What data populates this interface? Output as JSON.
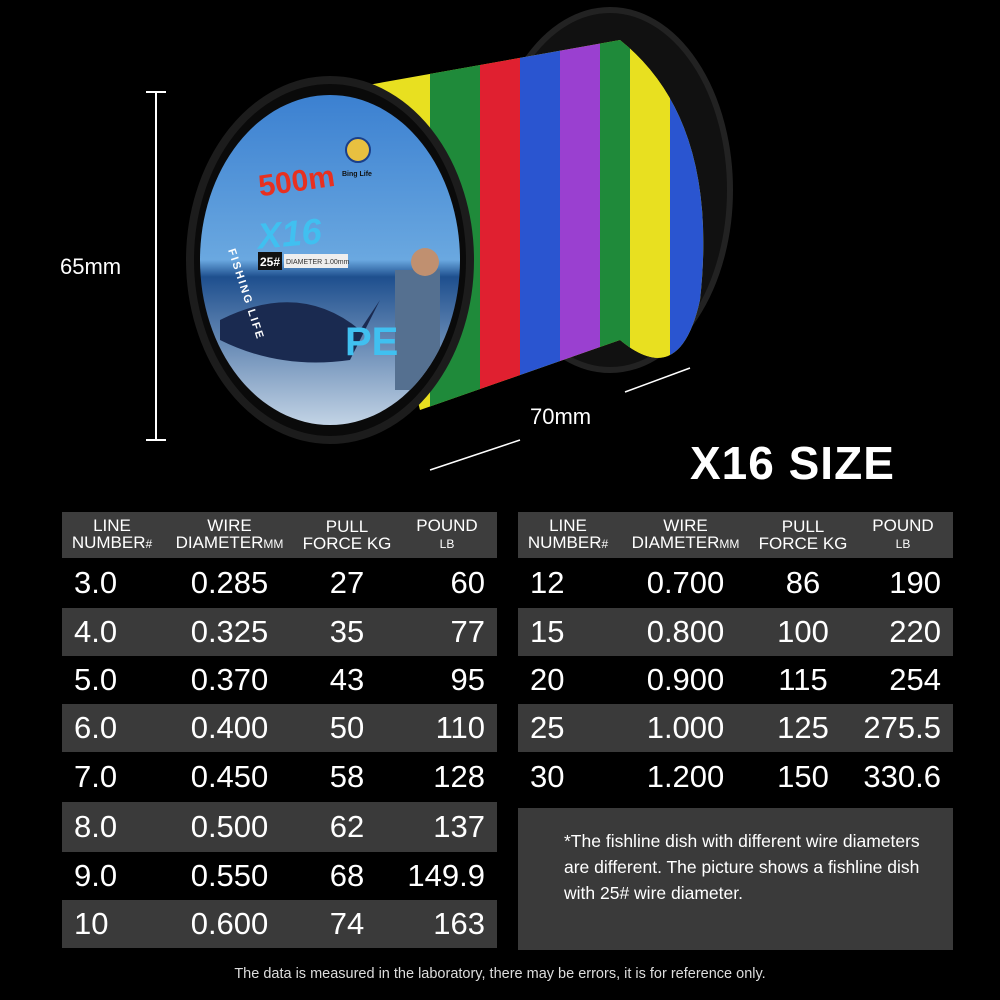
{
  "dimensions": {
    "height": "65mm",
    "width": "70mm"
  },
  "spool_label": {
    "length": "500m",
    "strands": "X16",
    "type": "PE",
    "line_number": "25#",
    "diameter": "DIAMETER 1.00mm",
    "side_text": "FISHING LIFE",
    "brand": "Bing Life"
  },
  "title": "X16 SIZE",
  "headers": {
    "line": "LINE",
    "number": "NUMBER",
    "number_unit": "#",
    "wire": "WIRE",
    "diameter": "DIAMETER",
    "diameter_unit": "MM",
    "pull": "PULL",
    "force": "FORCE  KG",
    "pound": "POUND",
    "pound_unit": "LB"
  },
  "left_rows": [
    [
      "3.0",
      "0.285",
      "27",
      "60"
    ],
    [
      "4.0",
      "0.325",
      "35",
      "77"
    ],
    [
      "5.0",
      "0.370",
      "43",
      "95"
    ],
    [
      " 6.0",
      "0.400",
      "50",
      "110"
    ],
    [
      "7.0",
      "0.450",
      "58",
      "128"
    ],
    [
      "8.0",
      "0.500",
      "62",
      "137"
    ],
    [
      "9.0",
      "0.550",
      "68",
      "149.9"
    ],
    [
      "10",
      "0.600",
      "74",
      "163"
    ]
  ],
  "right_rows": [
    [
      "12",
      "0.700",
      "86",
      "190"
    ],
    [
      "15",
      "0.800",
      "100",
      "220"
    ],
    [
      "20",
      "0.900",
      "115",
      "254"
    ],
    [
      "25",
      "1.000",
      "125",
      "275.5"
    ],
    [
      "30",
      "1.200",
      "150",
      "330.6"
    ]
  ],
  "note": "*The fishline dish with different wire diameters are different. The picture shows a fishline dish with 25# wire diameter.",
  "footer": "The data is measured in the laboratory, there may be errors, it is for reference only.",
  "colors": {
    "header_bg": "#3d3d3d",
    "row_alt_bg": "#3a3a3a",
    "background": "#000000"
  }
}
